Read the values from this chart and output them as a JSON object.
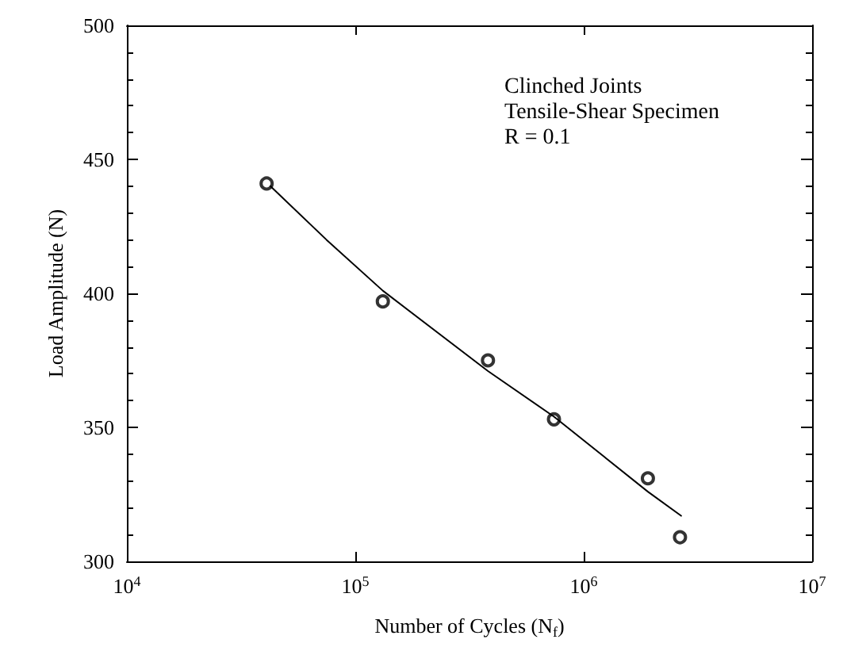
{
  "chart_data": {
    "type": "scatter",
    "xlabel": "Number of Cycles (N$_{f}$)",
    "ylabel": "Load Amplitude (N)",
    "annotations": [
      "Clinched Joints",
      "Tensile-Shear Specimen",
      "R = 0.1"
    ],
    "log": "x",
    "xlim": [
      10000,
      10000000
    ],
    "xticks": [
      {
        "value": 10000,
        "label": "10$^{4}$"
      },
      {
        "value": 100000,
        "label": "10$^{5}$"
      },
      {
        "value": 1000000,
        "label": "10$^{6}$"
      },
      {
        "value": 10000000,
        "label": "10$^{7}$"
      }
    ],
    "ylim": [
      300,
      500
    ],
    "yticks": [
      300,
      350,
      400,
      450,
      500
    ],
    "grid": false,
    "series": [
      {
        "marker": "circle",
        "color": "#000000",
        "x": [
          40900,
          132000,
          381000,
          741000,
          1910000,
          2640000
        ],
        "values": [
          441,
          397,
          375,
          353,
          331,
          309
        ]
      },
      {
        "type": "line",
        "marker": "none",
        "line_style": "solid",
        "color": "#000000",
        "x": [
          42500,
          74800,
          132000,
          381000,
          741000,
          1910000,
          2670000
        ],
        "values": [
          440,
          420,
          401,
          371,
          354,
          326,
          317
        ]
      }
    ]
  }
}
